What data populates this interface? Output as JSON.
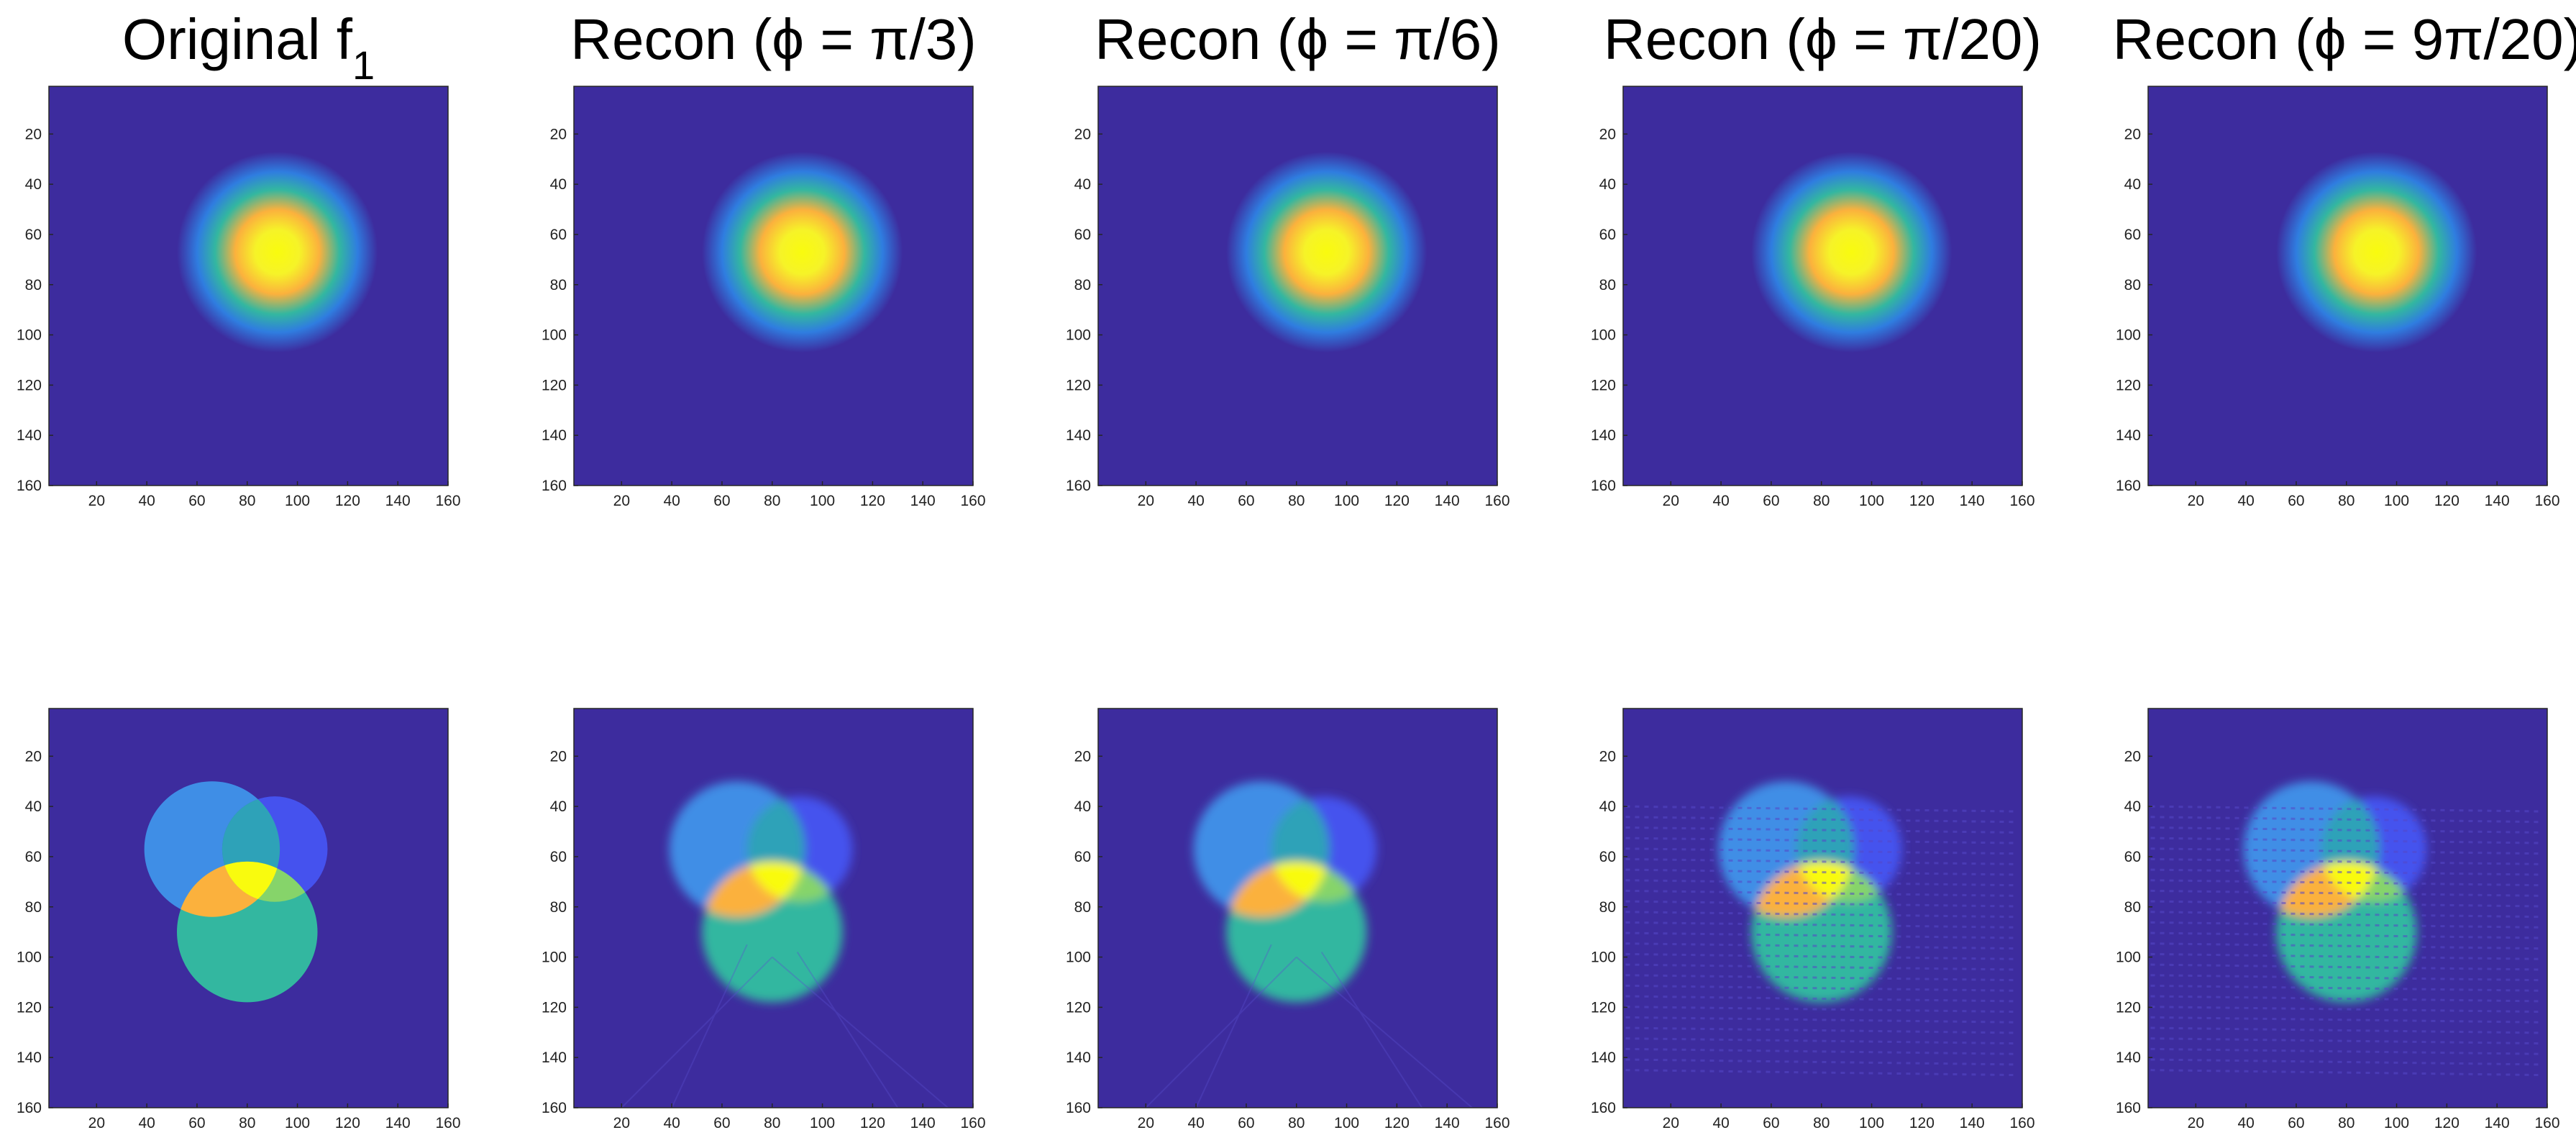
{
  "chart_data": {
    "type": "heatmap",
    "layout": {
      "rows": 2,
      "cols": 5
    },
    "colormap": "parula",
    "colors": {
      "background": "#3d2c9e",
      "low": "#3e26a8",
      "mid_blue": "#2f7de0",
      "teal": "#33b7a0",
      "yellow": "#f9fb0e",
      "orange": "#fbb13d"
    },
    "xlim": [
      1,
      160
    ],
    "ylim": [
      160,
      1
    ],
    "y_direction": "reverse",
    "xticks": [
      20,
      40,
      60,
      80,
      100,
      120,
      140,
      160
    ],
    "yticks": [
      20,
      40,
      60,
      80,
      100,
      120,
      140,
      160
    ],
    "column_titles": [
      {
        "main": "Original f",
        "sub": "1"
      },
      {
        "main": "Recon (ϕ = π/3)",
        "sub": ""
      },
      {
        "main": "Recon (ϕ = π/6)",
        "sub": ""
      },
      {
        "main": "Recon (ϕ = π/20)",
        "sub": ""
      },
      {
        "main": "Recon (ϕ = 9π/20)",
        "sub": ""
      }
    ],
    "row_1_object": {
      "shape": "smooth gaussian disk",
      "center": [
        92,
        67
      ],
      "radius": 40,
      "peak_color": "yellow"
    },
    "row_2_object": {
      "shape": "three overlapping disks",
      "disks": [
        {
          "center": [
            66,
            57
          ],
          "radius": 27,
          "level": "mid_blue"
        },
        {
          "center": [
            91,
            57
          ],
          "radius": 21,
          "level": "blue"
        },
        {
          "center": [
            80,
            90
          ],
          "radius": 28,
          "level": "teal"
        }
      ],
      "overlap_colors": [
        "yellow",
        "orange"
      ],
      "reconstruction_blur": [
        0,
        3,
        3,
        3,
        3
      ],
      "artifact_strength": [
        0,
        1,
        1,
        2,
        2
      ]
    }
  }
}
